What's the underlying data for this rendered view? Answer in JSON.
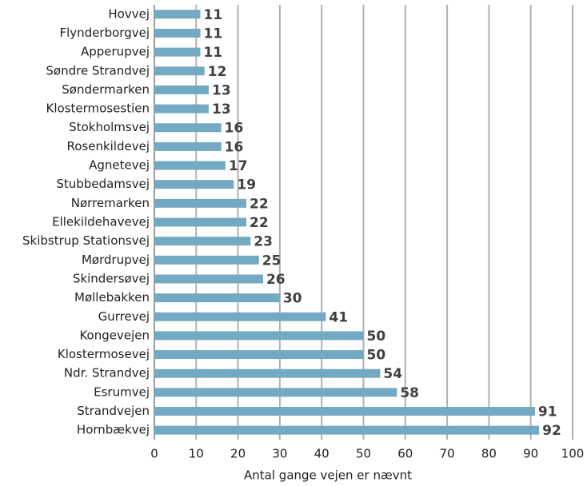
{
  "chart_data": {
    "type": "bar",
    "orientation": "horizontal",
    "x_label": "Antal gange vejen er nævnt",
    "categories": [
      "Hovvej",
      "Flynderborgvej",
      "Apperupvej",
      "Søndre Strandvej",
      "Søndermarken",
      "Klostermosestien",
      "Stokholmsvej",
      "Rosenkildevej",
      "Agnetevej",
      "Stubbedamsvej",
      "Nørremarken",
      "Ellekildehavevej",
      "Skibstrup Stationsvej",
      "Mørdrupvej",
      "Skindersøvej",
      "Møllebakken",
      "Gurrevej",
      "Kongevejen",
      "Klostermosevej",
      "Ndr. Strandvej",
      "Esrumvej",
      "Strandvejen",
      "Hornbækvej"
    ],
    "values": [
      11,
      11,
      11,
      12,
      13,
      13,
      16,
      16,
      17,
      19,
      22,
      22,
      23,
      25,
      26,
      30,
      41,
      50,
      50,
      54,
      58,
      91,
      92
    ],
    "color": "#74a9c4",
    "xlim": [
      0,
      100
    ],
    "xticks": [
      0,
      10,
      20,
      30,
      40,
      50,
      60,
      70,
      80,
      90,
      100
    ],
    "grid": true
  }
}
